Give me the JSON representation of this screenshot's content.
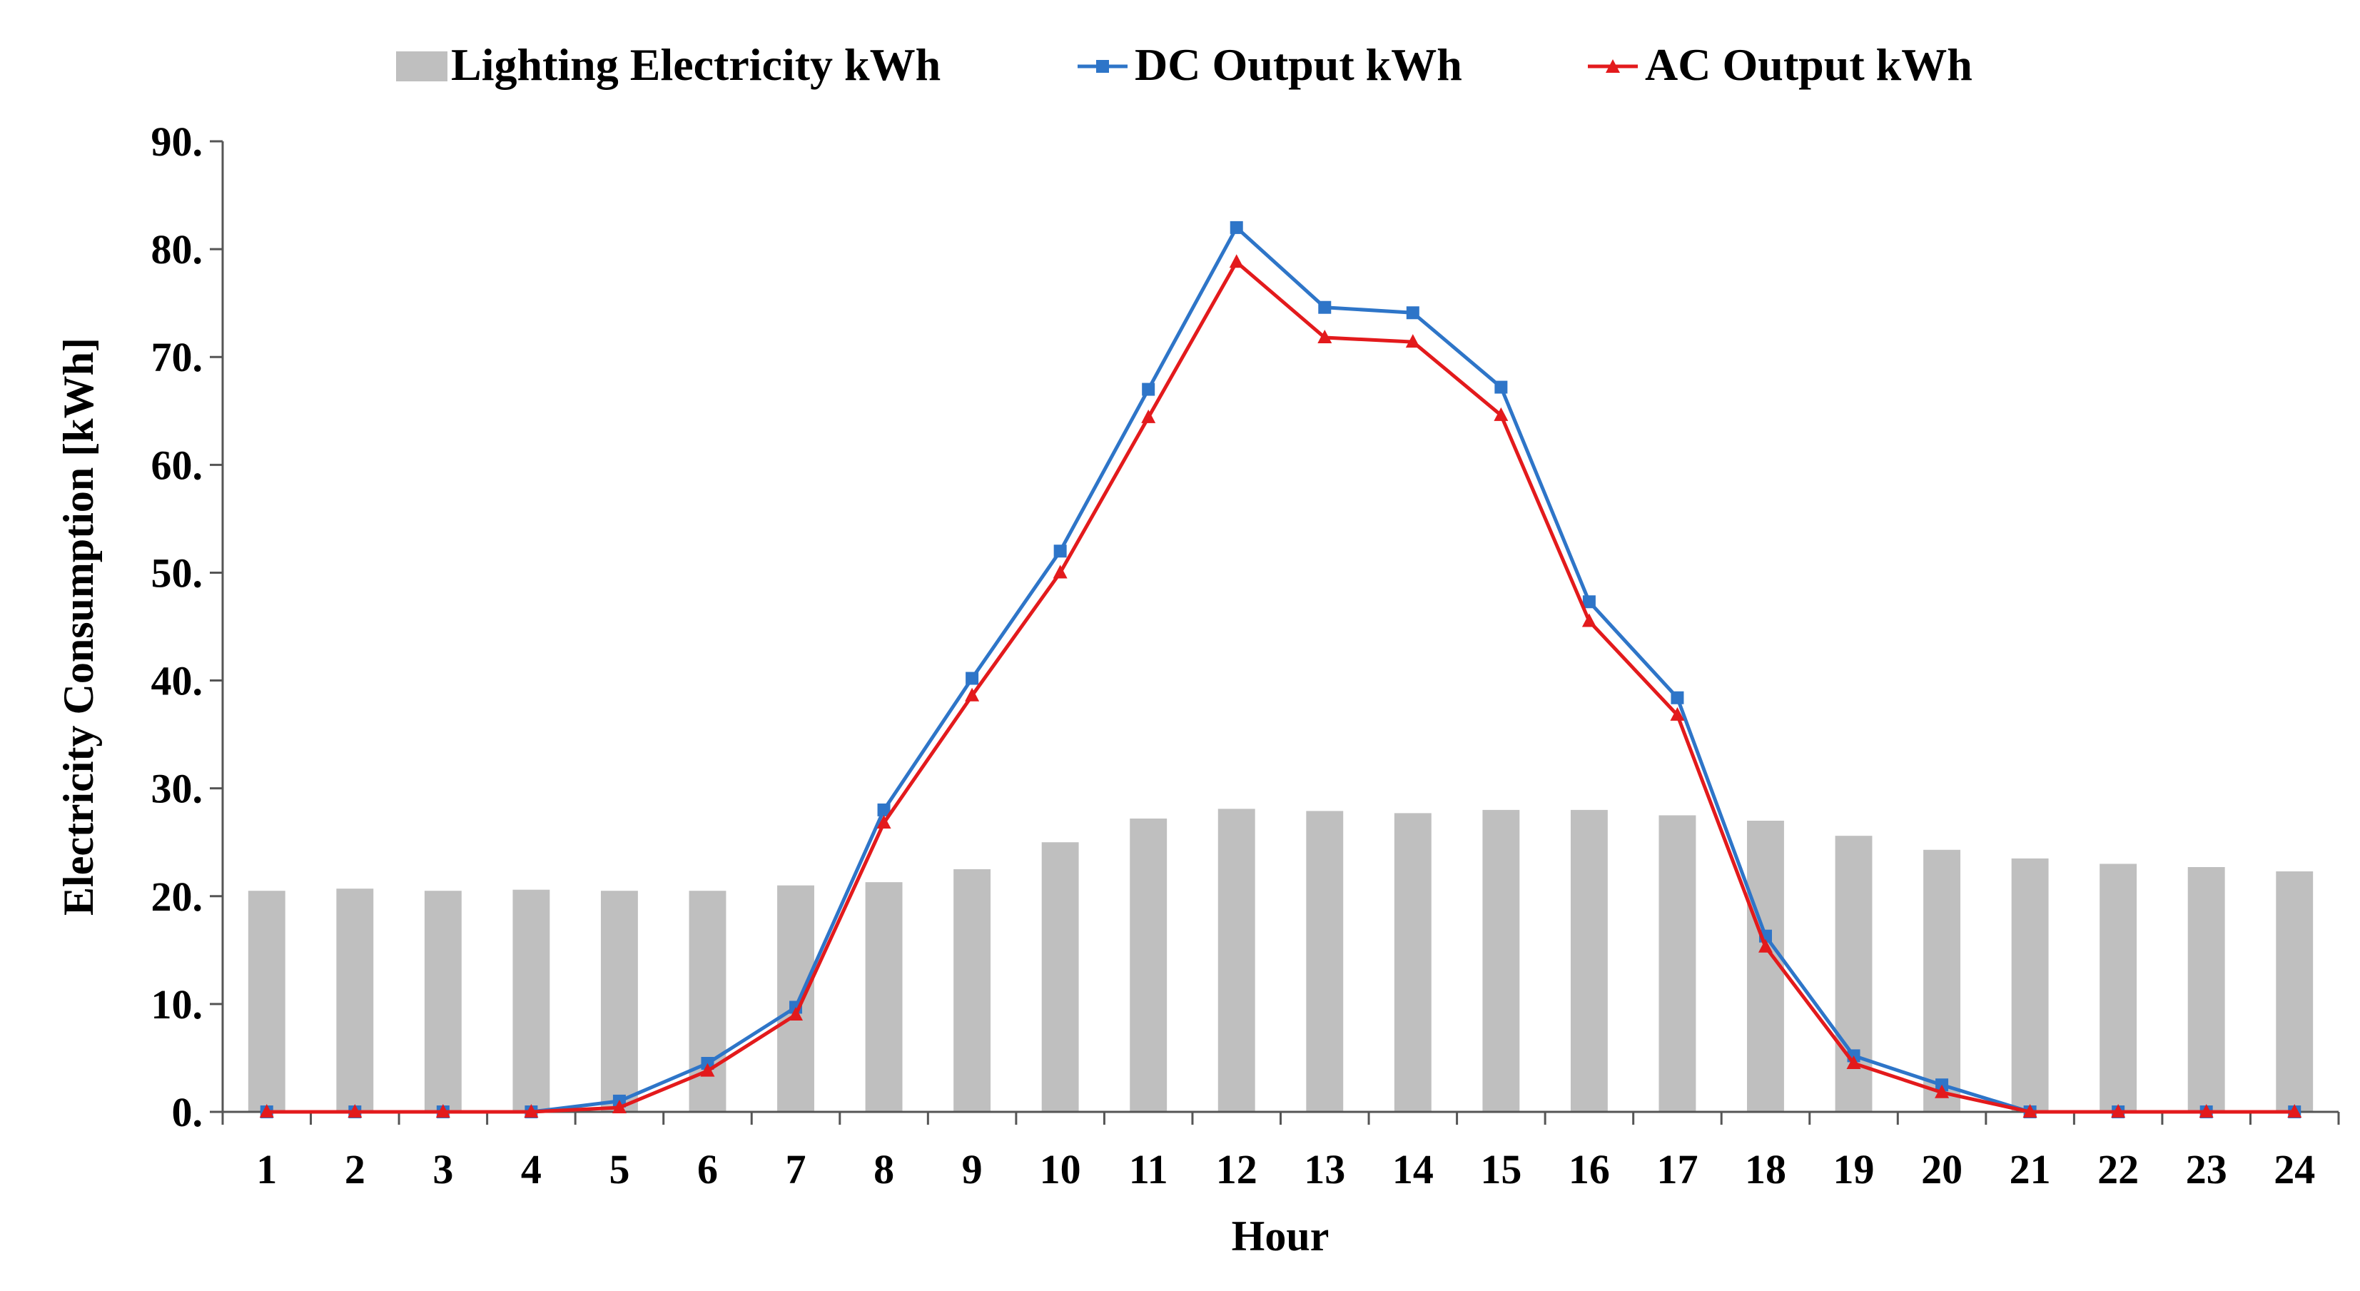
{
  "chart_data": {
    "type": "bar",
    "title": "",
    "xlabel": "Hour",
    "ylabel": "Electricity Consumption  [kWh]",
    "ylim": [
      0,
      90
    ],
    "yticks": [
      "0.",
      "10.",
      "20.",
      "30.",
      "40.",
      "50.",
      "60.",
      "70.",
      "80.",
      "90."
    ],
    "categories": [
      "1",
      "2",
      "3",
      "4",
      "5",
      "6",
      "7",
      "8",
      "9",
      "10",
      "11",
      "12",
      "13",
      "14",
      "15",
      "16",
      "17",
      "18",
      "19",
      "20",
      "21",
      "22",
      "23",
      "24"
    ],
    "series": [
      {
        "name": "Lighting Electricity kWh",
        "kind": "bar",
        "color": "#bfbfbf",
        "values": [
          20.5,
          20.7,
          20.5,
          20.6,
          20.5,
          20.5,
          21.0,
          21.3,
          22.5,
          25.0,
          27.2,
          28.1,
          27.9,
          27.7,
          28.0,
          28.0,
          27.5,
          27.0,
          25.6,
          24.3,
          23.5,
          23.0,
          22.7,
          22.3
        ]
      },
      {
        "name": "DC Output kWh",
        "kind": "line",
        "marker": "square",
        "color": "#2e75c8",
        "values": [
          0,
          0,
          0,
          0,
          1.0,
          4.5,
          9.7,
          28.0,
          40.2,
          52.0,
          67.0,
          82.0,
          74.6,
          74.1,
          67.2,
          47.3,
          38.4,
          16.3,
          5.2,
          2.5,
          0,
          0,
          0,
          0
        ]
      },
      {
        "name": "AC Output kWh",
        "kind": "line",
        "marker": "triangle",
        "color": "#e31a1c",
        "values": [
          0,
          0,
          0,
          0,
          0.4,
          3.8,
          9.0,
          26.8,
          38.6,
          50.0,
          64.4,
          78.8,
          71.8,
          71.4,
          64.6,
          45.5,
          36.8,
          15.3,
          4.5,
          1.8,
          0,
          0,
          0,
          0
        ]
      }
    ],
    "legend": "top-center",
    "grid": false
  }
}
